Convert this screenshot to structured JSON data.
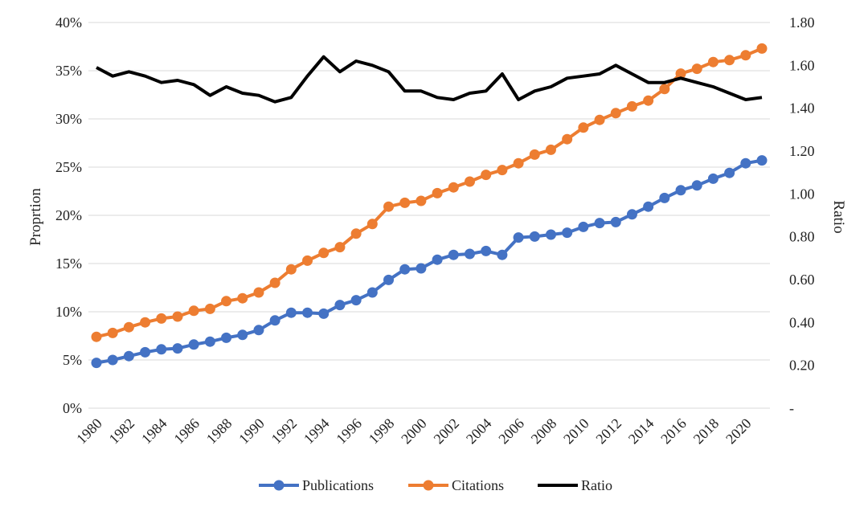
{
  "chart_data": {
    "type": "line",
    "title": "",
    "xlabel": "",
    "ylabel": "Proprtion",
    "y2label": "Ratio",
    "x": [
      1980,
      1981,
      1982,
      1983,
      1984,
      1985,
      1986,
      1987,
      1988,
      1989,
      1990,
      1991,
      1992,
      1993,
      1994,
      1995,
      1996,
      1997,
      1998,
      1999,
      2000,
      2001,
      2002,
      2003,
      2004,
      2005,
      2006,
      2007,
      2008,
      2009,
      2010,
      2011,
      2012,
      2013,
      2014,
      2015,
      2016,
      2017,
      2018,
      2019,
      2020,
      2021
    ],
    "x_tick_labels": [
      "1980",
      "1982",
      "1984",
      "1986",
      "1988",
      "1990",
      "1992",
      "1994",
      "1996",
      "1998",
      "2000",
      "2002",
      "2004",
      "2006",
      "2008",
      "2010",
      "2012",
      "2014",
      "2016",
      "2018",
      "2020"
    ],
    "ylim": [
      0,
      40
    ],
    "y_ticks": [
      0,
      5,
      10,
      15,
      20,
      25,
      30,
      35,
      40
    ],
    "y_tick_labels": [
      "0%",
      "5%",
      "10%",
      "15%",
      "20%",
      "25%",
      "30%",
      "35%",
      "40%"
    ],
    "y2lim": [
      0,
      1.8
    ],
    "y2_ticks": [
      0,
      0.2,
      0.4,
      0.6,
      0.8,
      1.0,
      1.2,
      1.4,
      1.6,
      1.8
    ],
    "y2_tick_labels": [
      "-",
      "0.20",
      "0.40",
      "0.60",
      "0.80",
      "1.00",
      "1.20",
      "1.40",
      "1.60",
      "1.80"
    ],
    "grid": true,
    "legend_position": "bottom",
    "series": [
      {
        "name": "Publications",
        "axis": "left",
        "color": "#4472c4",
        "marker": "circle",
        "values": [
          4.7,
          5.0,
          5.4,
          5.8,
          6.1,
          6.2,
          6.6,
          6.9,
          7.3,
          7.6,
          8.1,
          9.1,
          9.9,
          9.9,
          9.8,
          10.7,
          11.2,
          12.0,
          13.3,
          14.4,
          14.5,
          15.4,
          15.9,
          16.0,
          16.3,
          15.9,
          17.7,
          17.8,
          18.0,
          18.2,
          18.8,
          19.2,
          19.3,
          20.1,
          20.9,
          21.8,
          22.6,
          23.1,
          23.8,
          24.4,
          25.4,
          25.7
        ]
      },
      {
        "name": "Citations",
        "axis": "left",
        "color": "#ed7d31",
        "marker": "circle",
        "values": [
          7.4,
          7.8,
          8.4,
          8.9,
          9.3,
          9.5,
          10.1,
          10.3,
          11.1,
          11.4,
          12.0,
          13.0,
          14.4,
          15.3,
          16.1,
          16.7,
          18.1,
          19.1,
          20.9,
          21.3,
          21.5,
          22.3,
          22.9,
          23.5,
          24.2,
          24.7,
          25.4,
          26.3,
          26.8,
          27.9,
          29.1,
          29.9,
          30.6,
          31.3,
          31.9,
          33.1,
          34.7,
          35.2,
          35.9,
          36.1,
          36.6,
          37.3
        ]
      },
      {
        "name": "Ratio",
        "axis": "right",
        "color": "#000000",
        "marker": "none",
        "values": [
          1.59,
          1.55,
          1.57,
          1.55,
          1.52,
          1.53,
          1.51,
          1.46,
          1.5,
          1.47,
          1.46,
          1.43,
          1.45,
          1.55,
          1.64,
          1.57,
          1.62,
          1.6,
          1.57,
          1.48,
          1.48,
          1.45,
          1.44,
          1.47,
          1.48,
          1.56,
          1.44,
          1.48,
          1.5,
          1.54,
          1.55,
          1.56,
          1.6,
          1.56,
          1.52,
          1.52,
          1.54,
          1.52,
          1.5,
          1.47,
          1.44,
          1.45
        ]
      }
    ]
  }
}
